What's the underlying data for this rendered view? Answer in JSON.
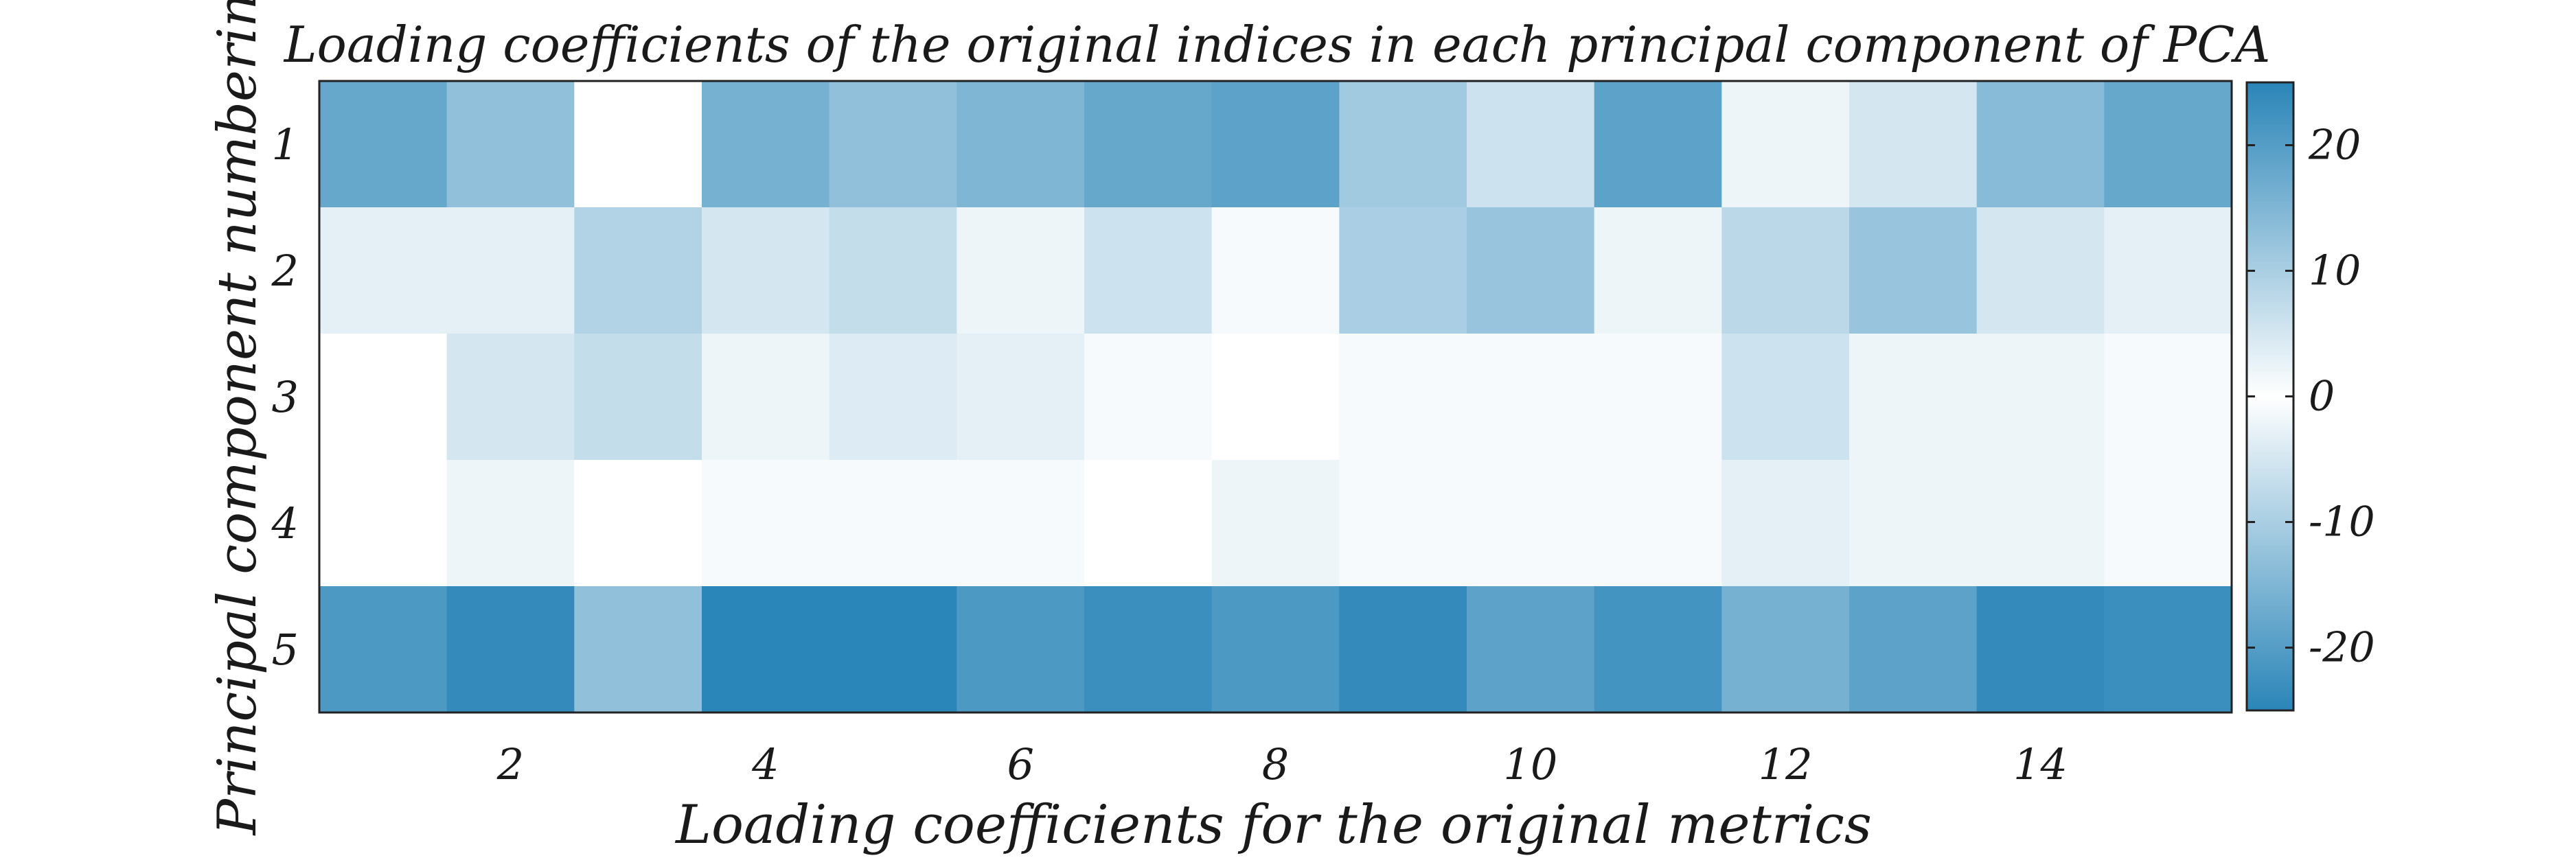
{
  "chart_data": {
    "type": "heatmap",
    "title": "Loading coefficients of the original indices in each principal component of PCA",
    "xlabel": "Loading coefficients for the original metrics",
    "ylabel": "Principal component numbering",
    "x": [
      1,
      2,
      3,
      4,
      5,
      6,
      7,
      8,
      9,
      10,
      11,
      12,
      13,
      14,
      15
    ],
    "y": [
      1,
      2,
      3,
      4,
      5
    ],
    "xticks": [
      2,
      4,
      6,
      8,
      10,
      12,
      14
    ],
    "yticks": [
      1,
      2,
      3,
      4,
      5
    ],
    "colorbar": {
      "range": [
        -25,
        25
      ],
      "ticks": [
        20,
        10,
        0,
        -10,
        -20
      ],
      "tick_labels": [
        "20",
        "10",
        "0",
        "-10",
        "-20"
      ],
      "color_low": "#2a85b8",
      "color_mid": "#ffffff",
      "color_high": "#2a85b8"
    },
    "values": [
      [
        18,
        13,
        0,
        16,
        13,
        15,
        18,
        19,
        11,
        6,
        19,
        2,
        5,
        14,
        18
      ],
      [
        3,
        3,
        9,
        5,
        7,
        2,
        6,
        1,
        10,
        12,
        2,
        8,
        12,
        5,
        3
      ],
      [
        0,
        5,
        7,
        2,
        4,
        3,
        1,
        0,
        1,
        1,
        1,
        6,
        2,
        2,
        1
      ],
      [
        0,
        2,
        0,
        1,
        1,
        1,
        0,
        2,
        1,
        1,
        1,
        3,
        2,
        2,
        1
      ],
      [
        -21,
        -24,
        -13,
        -25,
        -25,
        -21,
        -23,
        -21,
        -24,
        -19,
        -22,
        -16,
        -19,
        -24,
        -23
      ]
    ]
  }
}
